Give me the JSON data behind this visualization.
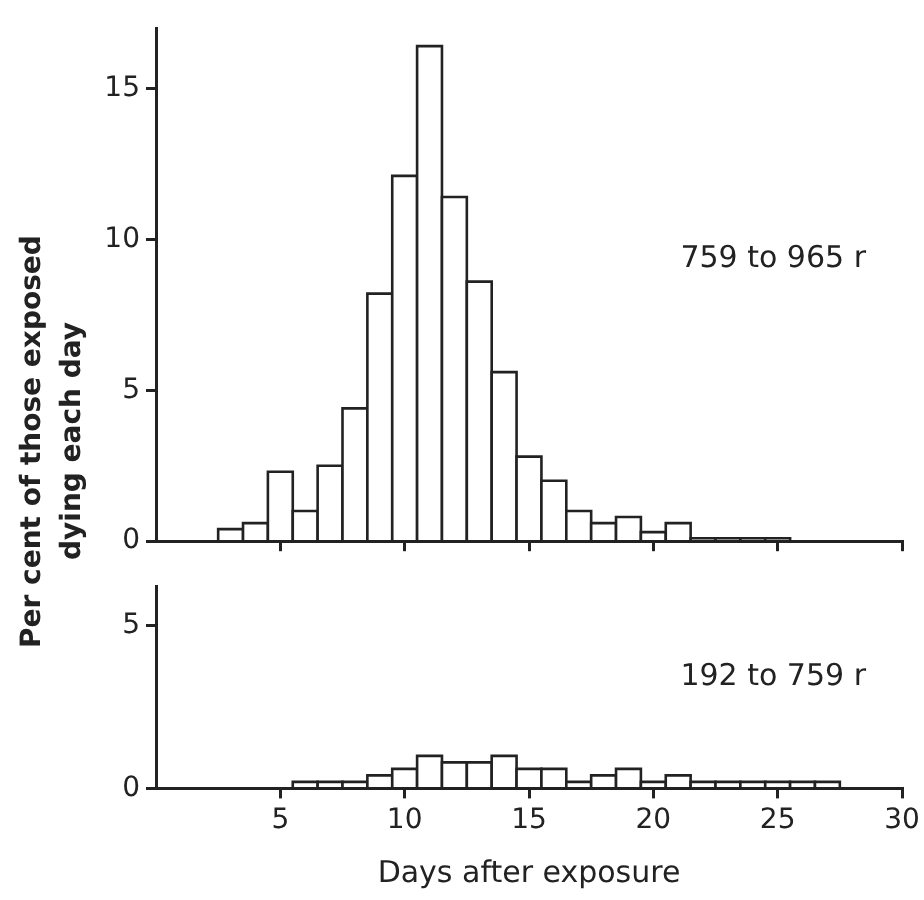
{
  "chart_data": [
    {
      "type": "histogram",
      "ylabel": "Per cent of those exposed dying each day",
      "bins": [
        2.5,
        3.5,
        4.5,
        5.5,
        6.5,
        7.5,
        8.5,
        9.5,
        10.5,
        11.5,
        12.5,
        13.5,
        14.5,
        15.5,
        16.5,
        17.5,
        18.5,
        19.5,
        20.5,
        21.5,
        22.5,
        23.5,
        24.5,
        25.5
      ],
      "values": [
        0.4,
        0.6,
        2.3,
        1.0,
        2.5,
        4.4,
        8.2,
        12.1,
        16.4,
        11.4,
        8.6,
        5.6,
        2.8,
        2.0,
        1.0,
        0.6,
        0.8,
        0.3,
        0.6,
        0.1,
        0.1,
        0.1,
        0.1
      ],
      "color": "#ffffff",
      "xlim": [
        0,
        30
      ],
      "xticks": [
        {
          "value": 5,
          "label": null
        },
        {
          "value": 10,
          "label": null
        },
        {
          "value": 15,
          "label": null
        },
        {
          "value": 20,
          "label": null
        },
        {
          "value": 25,
          "label": null
        },
        {
          "value": 30,
          "label": null
        }
      ],
      "ylim": [
        0,
        17
      ],
      "yticks": [
        0,
        5,
        10,
        15
      ],
      "tick_labels": "y",
      "grid": false,
      "legend": false,
      "annotations": [
        "759 to 965 r"
      ]
    },
    {
      "type": "histogram",
      "xlabel": "Days after exposure",
      "bins": [
        5.5,
        6.5,
        7.5,
        8.5,
        9.5,
        10.5,
        11.5,
        12.5,
        13.5,
        14.5,
        15.5,
        16.5,
        17.5,
        18.5,
        19.5,
        20.5,
        21.5,
        22.5,
        23.5,
        24.5,
        25.5,
        26.5,
        27.5
      ],
      "values": [
        0.2,
        0.2,
        0.2,
        0.4,
        0.6,
        1.0,
        0.8,
        0.8,
        1.0,
        0.6,
        0.6,
        0.2,
        0.4,
        0.6,
        0.2,
        0.4,
        0.2,
        0.2,
        0.2,
        0.2,
        0.2,
        0.2
      ],
      "color": "#ffffff",
      "xlim": [
        0,
        30
      ],
      "xticks": [
        5,
        10,
        15,
        20,
        25,
        30
      ],
      "ylim": [
        0,
        6.2
      ],
      "yticks": [
        0,
        5
      ],
      "grid": false,
      "legend": false,
      "annotations": [
        "192 to 759 r"
      ]
    }
  ]
}
